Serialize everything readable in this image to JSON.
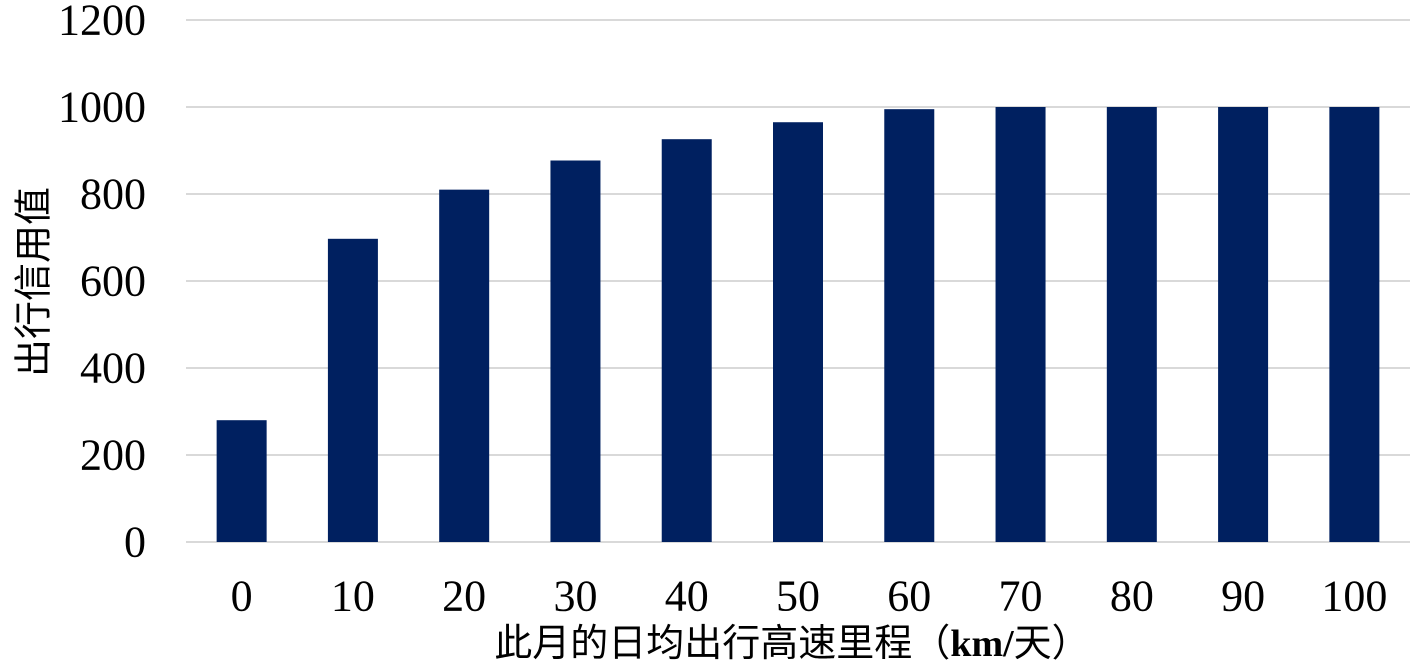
{
  "chart_data": {
    "type": "bar",
    "categories": [
      "0",
      "10",
      "20",
      "30",
      "40",
      "50",
      "60",
      "70",
      "80",
      "90",
      "100"
    ],
    "series": [
      {
        "values": [
          280,
          697,
          810,
          877,
          926,
          965,
          995,
          1000,
          1000,
          1000,
          1000
        ]
      }
    ],
    "ylim": [
      0,
      1200
    ],
    "yticks": [
      "0",
      "200",
      "400",
      "600",
      "800",
      "1000",
      "1200"
    ],
    "ylabel": "出行信用值",
    "xlabel": {
      "prefix": "此月的日均出行高速里程（",
      "unit_bold": "km/",
      "suffix": "天）"
    },
    "grid": "horizontal",
    "legend": "none",
    "colors": {
      "bar": "#002060",
      "grid": "#d9d9d9"
    }
  }
}
